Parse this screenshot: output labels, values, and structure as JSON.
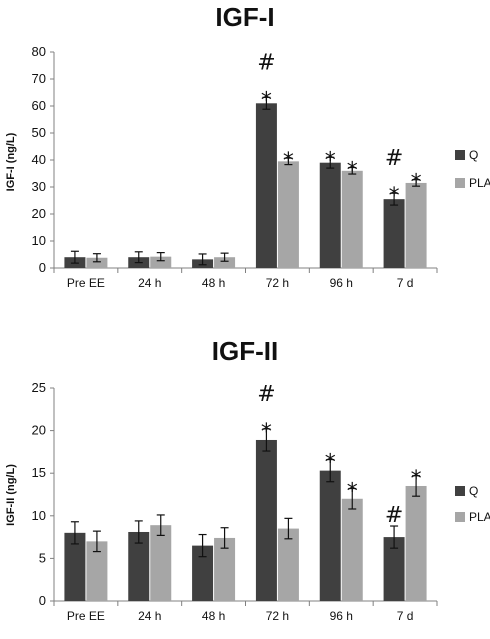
{
  "chart_data": [
    {
      "type": "bar",
      "title": "IGF-I",
      "ylabel": "IGF-I (ng/L)",
      "xlabel": "",
      "ylim": [
        0,
        80
      ],
      "yticks": [
        "0",
        "10",
        "20",
        "30",
        "40",
        "50",
        "60",
        "70",
        "80"
      ],
      "categories": [
        "Pre EE",
        "24 h",
        "48 h",
        "72 h",
        "96 h",
        "7 d"
      ],
      "series": [
        {
          "name": "Q",
          "color": "#404040",
          "values": [
            4,
            4,
            3.2,
            61,
            39,
            25.5
          ],
          "errors": [
            2.2,
            2,
            2,
            2.2,
            2,
            2.2
          ]
        },
        {
          "name": "PLA",
          "color": "#a6a6a6",
          "values": [
            3.8,
            4.2,
            4,
            39.5,
            36,
            31.5
          ],
          "errors": [
            1.5,
            1.5,
            1.5,
            1.2,
            1.2,
            1.2
          ]
        }
      ],
      "annotations": [
        {
          "category": "72 h",
          "series": "Q",
          "marks": [
            "#",
            "*"
          ]
        },
        {
          "category": "72 h",
          "series": "PLA",
          "marks": [
            "*"
          ]
        },
        {
          "category": "96 h",
          "series": "Q",
          "marks": [
            "*"
          ]
        },
        {
          "category": "96 h",
          "series": "PLA",
          "marks": [
            "*"
          ]
        },
        {
          "category": "7 d",
          "series": "Q",
          "marks": [
            "#",
            "*"
          ]
        },
        {
          "category": "7 d",
          "series": "PLA",
          "marks": [
            "*"
          ]
        }
      ],
      "grid": false,
      "legend": "right"
    },
    {
      "type": "bar",
      "title": "IGF-II",
      "ylabel": "IGF-II (ng/L)",
      "xlabel": "",
      "ylim": [
        0,
        25
      ],
      "yticks": [
        "0",
        "5",
        "10",
        "15",
        "20",
        "25"
      ],
      "categories": [
        "Pre EE",
        "24 h",
        "48 h",
        "72 h",
        "96 h",
        "7 d"
      ],
      "series": [
        {
          "name": "Q",
          "color": "#404040",
          "values": [
            8,
            8.1,
            6.5,
            18.9,
            15.3,
            7.5
          ],
          "errors": [
            1.3,
            1.3,
            1.3,
            1.3,
            1.3,
            1.3
          ]
        },
        {
          "name": "PLA",
          "color": "#a6a6a6",
          "values": [
            7,
            8.9,
            7.4,
            8.5,
            12,
            13.5
          ],
          "errors": [
            1.2,
            1.2,
            1.2,
            1.2,
            1.2,
            1.2
          ]
        }
      ],
      "annotations": [
        {
          "category": "72 h",
          "series": "Q",
          "marks": [
            "#",
            "*"
          ]
        },
        {
          "category": "96 h",
          "series": "Q",
          "marks": [
            "*"
          ]
        },
        {
          "category": "96 h",
          "series": "PLA",
          "marks": [
            "*"
          ]
        },
        {
          "category": "7 d",
          "series": "Q",
          "marks": [
            "#"
          ]
        },
        {
          "category": "7 d",
          "series": "PLA",
          "marks": [
            "*"
          ]
        }
      ],
      "grid": false,
      "legend": "right"
    }
  ]
}
